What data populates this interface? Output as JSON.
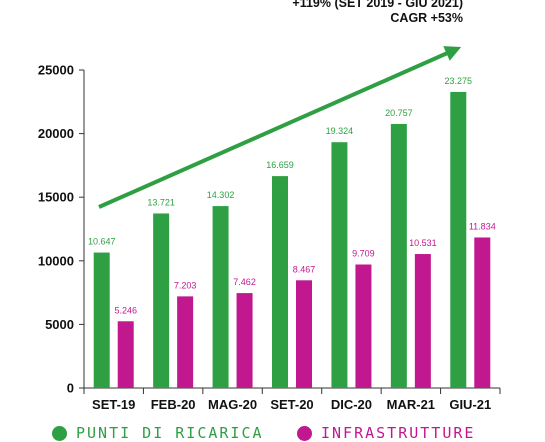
{
  "chart_data": {
    "type": "bar",
    "categories": [
      "SET-19",
      "FEB-20",
      "MAG-20",
      "SET-20",
      "DIC-20",
      "MAR-21",
      "GIU-21"
    ],
    "series": [
      {
        "name": "PUNTI DI RICARICA",
        "color": "#2ea043",
        "values": [
          10647,
          13721,
          14302,
          16659,
          19324,
          20757,
          23275
        ],
        "labels": [
          "10.647",
          "13.721",
          "14.302",
          "16.659",
          "19.324",
          "20.757",
          "23.275"
        ]
      },
      {
        "name": "INFRASTRUTTURE",
        "color": "#c2188f",
        "values": [
          5246,
          7203,
          7462,
          8467,
          9709,
          10531,
          11834
        ],
        "labels": [
          "5.246",
          "7.203",
          "7.462",
          "8.467",
          "9.709",
          "10.531",
          "11.834"
        ]
      }
    ],
    "ylim": [
      0,
      25000
    ],
    "yticks": [
      0,
      5000,
      10000,
      15000,
      20000,
      25000
    ],
    "ytick_labels": [
      "0",
      "5000",
      "10000",
      "15000",
      "20000",
      "25000"
    ],
    "annotations": [
      "+119%  (SET 2019 - GIU 2021)",
      "CAGR +53%"
    ],
    "trend_arrow_color": "#2ea043",
    "legend": {
      "position": "bottom"
    }
  }
}
